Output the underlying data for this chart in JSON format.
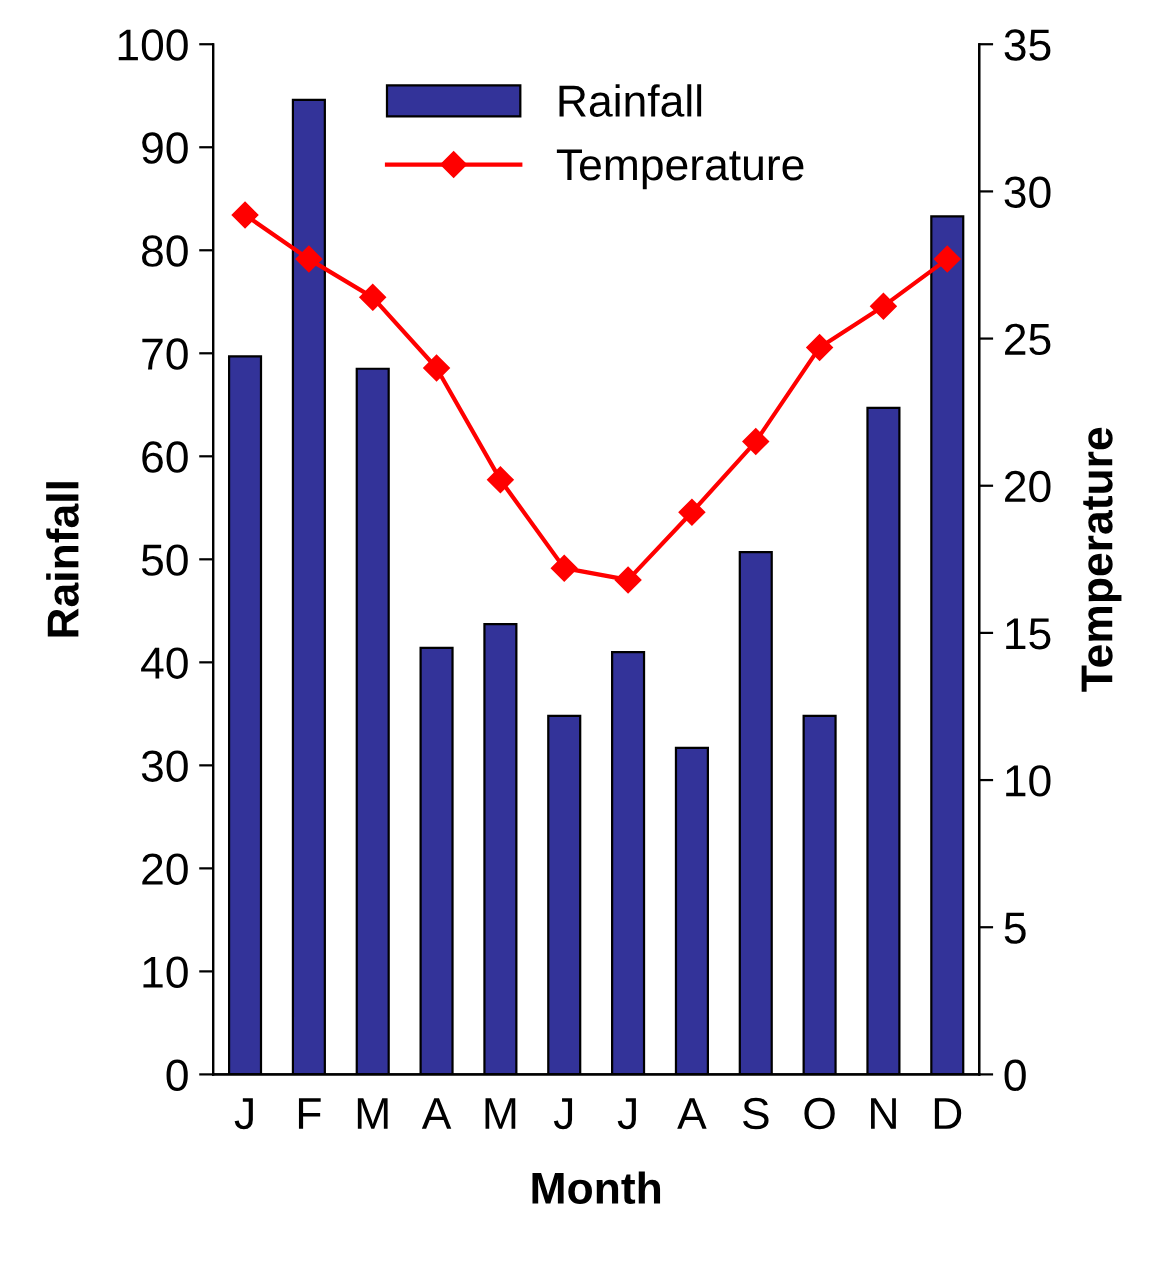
{
  "chart_data": {
    "type": "bar",
    "xlabel": "Month",
    "ylabel": "Rainfall",
    "y2label": "Temperature",
    "categories": [
      "J",
      "F",
      "M",
      "A",
      "M",
      "J",
      "J",
      "A",
      "S",
      "O",
      "N",
      "D"
    ],
    "series": [
      {
        "name": "Rainfall",
        "color": "#333399",
        "values": [
          69.7,
          94.6,
          68.5,
          41.4,
          43.7,
          34.8,
          41.0,
          31.7,
          50.7,
          34.8,
          64.7,
          83.3
        ]
      },
      {
        "name": "Temperature",
        "type": "line",
        "axis": "y2",
        "color": "#ff0000",
        "marker": "diamond",
        "values": [
          29.2,
          27.7,
          26.4,
          24.0,
          20.2,
          17.2,
          16.8,
          19.1,
          21.5,
          24.7,
          26.1,
          27.7
        ]
      }
    ],
    "ylim": [
      0,
      100
    ],
    "yticks": [
      0,
      10,
      20,
      30,
      40,
      50,
      60,
      70,
      80,
      90,
      100
    ],
    "y2lim": [
      0,
      35
    ],
    "y2ticks": [
      0,
      5,
      10,
      15,
      20,
      25,
      30,
      35
    ],
    "legend": "top",
    "grid": false
  }
}
